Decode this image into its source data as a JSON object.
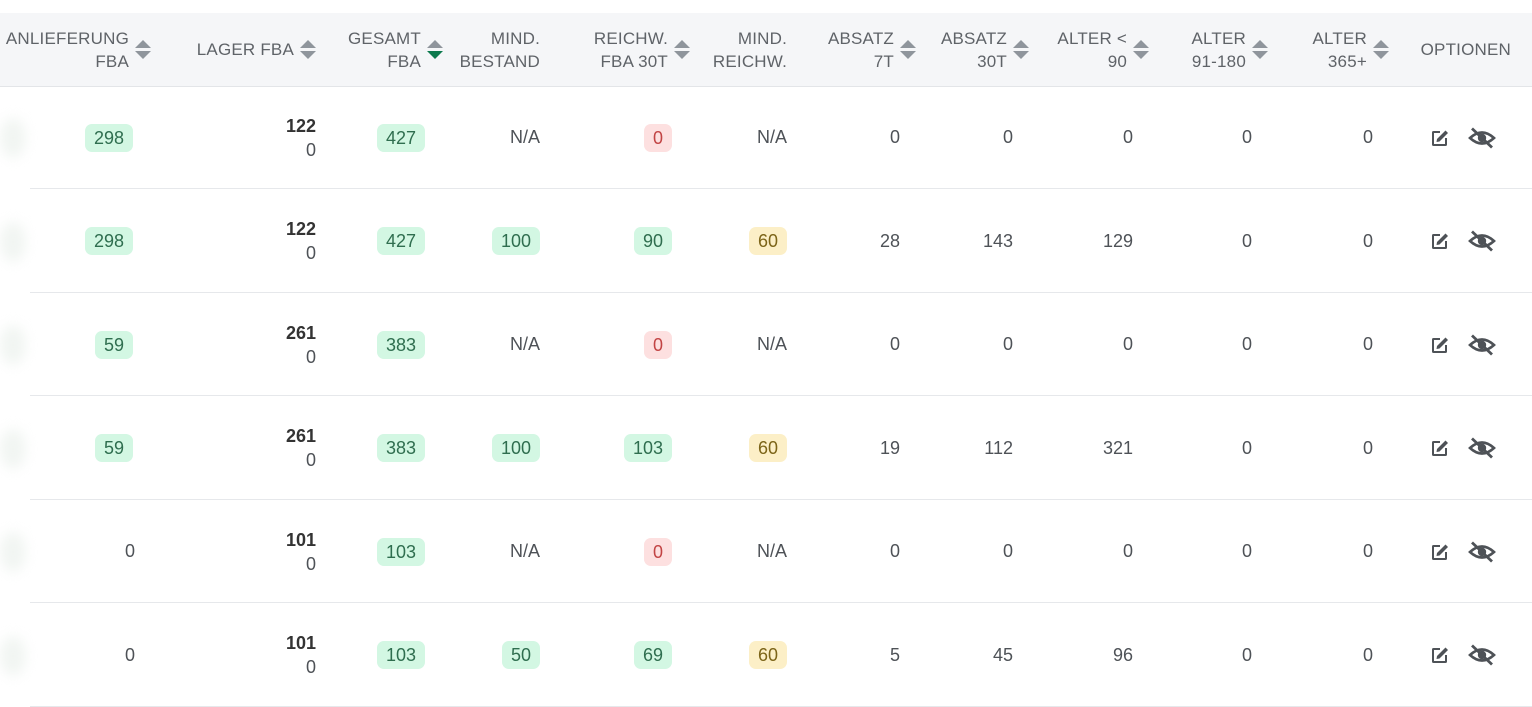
{
  "columns": [
    {
      "key": "anl",
      "lines": [
        "ANLIEFERUNG",
        "FBA"
      ],
      "sort": "none"
    },
    {
      "key": "lager",
      "lines": [
        "LAGER FBA"
      ],
      "sort": "none"
    },
    {
      "key": "gesamt",
      "lines": [
        "GESAMT",
        "FBA"
      ],
      "sort": "desc"
    },
    {
      "key": "mind_bestand",
      "lines": [
        "MIND.",
        "BESTAND"
      ],
      "sort": null
    },
    {
      "key": "reichw",
      "lines": [
        "REICHW.",
        "FBA 30T"
      ],
      "sort": "none"
    },
    {
      "key": "mind_reichw",
      "lines": [
        "MIND.",
        "REICHW."
      ],
      "sort": null
    },
    {
      "key": "absatz7",
      "lines": [
        "ABSATZ",
        "7T"
      ],
      "sort": "none"
    },
    {
      "key": "absatz30",
      "lines": [
        "ABSATZ",
        "30T"
      ],
      "sort": "none"
    },
    {
      "key": "alter90",
      "lines": [
        "ALTER <",
        "90"
      ],
      "sort": "none"
    },
    {
      "key": "alter91",
      "lines": [
        "ALTER",
        "91-180"
      ],
      "sort": "none"
    },
    {
      "key": "alter365",
      "lines": [
        "ALTER",
        "365+"
      ],
      "sort": "none"
    },
    {
      "key": "optionen",
      "lines": [
        "OPTIONEN"
      ],
      "sort": null
    }
  ],
  "rows": [
    {
      "anl": "298",
      "anl_style": "g",
      "lager_top": "122",
      "lager_bot": "0",
      "gesamt": "427",
      "mind_bestand": "N/A",
      "mind_bestand_style": "",
      "reichw": "0",
      "reichw_style": "r",
      "mind_reichw": "N/A",
      "mind_reichw_style": "",
      "absatz7": "0",
      "absatz30": "0",
      "alter90": "0",
      "alter91": "0",
      "alter365": "0"
    },
    {
      "anl": "298",
      "anl_style": "g",
      "lager_top": "122",
      "lager_bot": "0",
      "gesamt": "427",
      "mind_bestand": "100",
      "mind_bestand_style": "g",
      "reichw": "90",
      "reichw_style": "g",
      "mind_reichw": "60",
      "mind_reichw_style": "y",
      "absatz7": "28",
      "absatz30": "143",
      "alter90": "129",
      "alter91": "0",
      "alter365": "0"
    },
    {
      "anl": "59",
      "anl_style": "g",
      "lager_top": "261",
      "lager_bot": "0",
      "gesamt": "383",
      "mind_bestand": "N/A",
      "mind_bestand_style": "",
      "reichw": "0",
      "reichw_style": "r",
      "mind_reichw": "N/A",
      "mind_reichw_style": "",
      "absatz7": "0",
      "absatz30": "0",
      "alter90": "0",
      "alter91": "0",
      "alter365": "0"
    },
    {
      "anl": "59",
      "anl_style": "g",
      "lager_top": "261",
      "lager_bot": "0",
      "gesamt": "383",
      "mind_bestand": "100",
      "mind_bestand_style": "g",
      "reichw": "103",
      "reichw_style": "g",
      "mind_reichw": "60",
      "mind_reichw_style": "y",
      "absatz7": "19",
      "absatz30": "112",
      "alter90": "321",
      "alter91": "0",
      "alter365": "0"
    },
    {
      "anl": "0",
      "anl_style": "",
      "lager_top": "101",
      "lager_bot": "0",
      "gesamt": "103",
      "mind_bestand": "N/A",
      "mind_bestand_style": "",
      "reichw": "0",
      "reichw_style": "r",
      "mind_reichw": "N/A",
      "mind_reichw_style": "",
      "absatz7": "0",
      "absatz30": "0",
      "alter90": "0",
      "alter91": "0",
      "alter365": "0"
    },
    {
      "anl": "0",
      "anl_style": "",
      "lager_top": "101",
      "lager_bot": "0",
      "gesamt": "103",
      "mind_bestand": "50",
      "mind_bestand_style": "g",
      "reichw": "69",
      "reichw_style": "g",
      "mind_reichw": "60",
      "mind_reichw_style": "y",
      "absatz7": "5",
      "absatz30": "45",
      "alter90": "96",
      "alter91": "0",
      "alter365": "0"
    }
  ],
  "icons": {
    "edit": "edit-icon",
    "hide": "eye-slash-icon"
  },
  "colors": {
    "badge_green": "#d3f7e3",
    "badge_red": "#fde0e0",
    "badge_yellow": "#fcefc7",
    "sort_active": "#0d7a4e"
  }
}
